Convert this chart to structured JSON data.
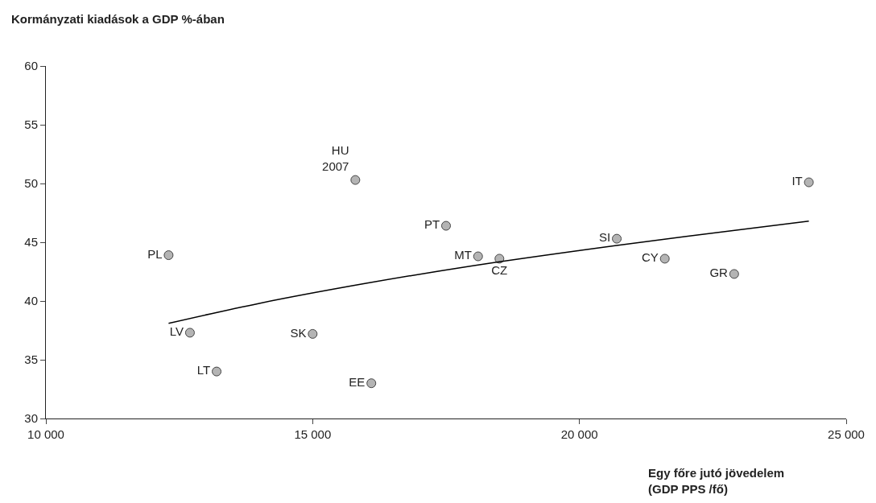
{
  "chart_data": {
    "type": "scatter",
    "ylabel": "Kormányzati kiadások a GDP %-ában",
    "xlabel": "Egy főre jutó jövedelem\n(GDP PPS /fő)",
    "xlim": [
      10000,
      25000
    ],
    "xticks": [
      {
        "value": 10000,
        "label": "10 000"
      },
      {
        "value": 15000,
        "label": "15 000"
      },
      {
        "value": 20000,
        "label": "20 000"
      },
      {
        "value": 25000,
        "label": "25 000"
      }
    ],
    "ylim": [
      30,
      60
    ],
    "yticks": [
      30,
      35,
      40,
      45,
      50,
      55,
      60
    ],
    "marker": "circle",
    "series": [
      {
        "color": "#b4b4b4",
        "x": [
          15800,
          24300,
          17500,
          20700,
          18100,
          18500,
          21600,
          22900,
          12300,
          12700,
          15000,
          13200,
          16100
        ],
        "values": [
          50.3,
          50.1,
          46.4,
          45.3,
          43.8,
          43.6,
          43.6,
          42.3,
          43.9,
          37.3,
          37.2,
          34.0,
          33.0
        ],
        "value_labels": [
          "HU\n2007",
          "IT",
          "PT",
          "SI",
          "MT",
          "CZ",
          "CY",
          "GR",
          "PL",
          "LV",
          "SK",
          "LT",
          "EE"
        ]
      },
      {
        "type": "line",
        "color": "#000000",
        "line_style": "solid",
        "marker": "none",
        "x": [
          12300,
          14000,
          16000,
          18000,
          20000,
          22000,
          24300
        ],
        "values": [
          38.1,
          39.8,
          41.5,
          43.0,
          44.3,
          45.5,
          46.8
        ]
      }
    ]
  }
}
